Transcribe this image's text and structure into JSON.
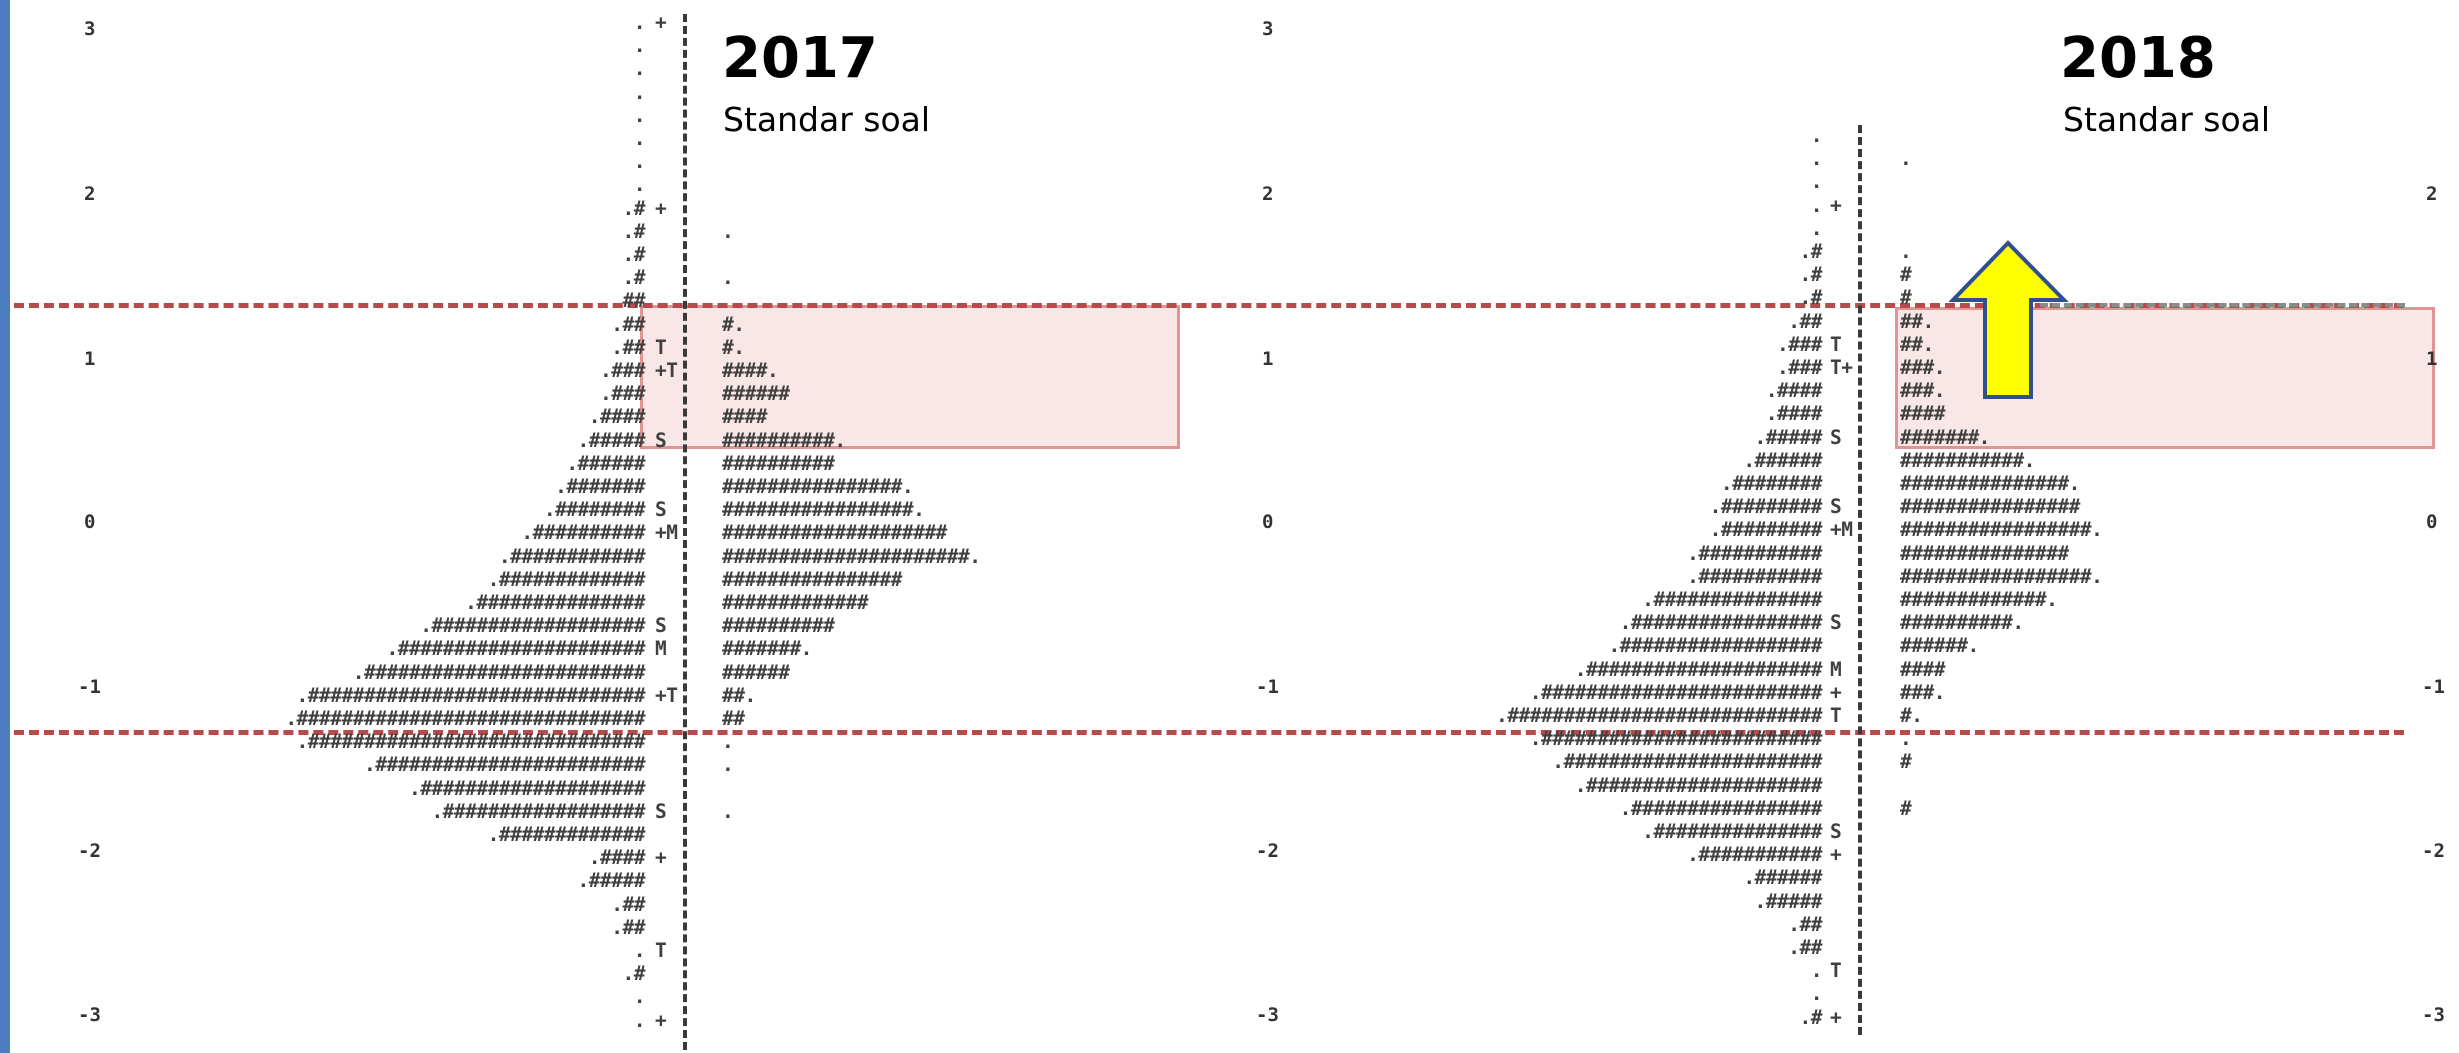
{
  "panels": [
    {
      "title": "2017",
      "subtitle": "Standar soal",
      "axis_ticks": [
        "3",
        "2",
        "1",
        "0",
        "-1",
        "-2",
        "-3"
      ],
      "rows": [
        {
          "left": ".",
          "marker": "+",
          "right": ""
        },
        {
          "left": ".",
          "marker": "",
          "right": ""
        },
        {
          "left": ".",
          "marker": "",
          "right": ""
        },
        {
          "left": ".",
          "marker": "",
          "right": ""
        },
        {
          "left": ".",
          "marker": "",
          "right": ""
        },
        {
          "left": ".",
          "marker": "",
          "right": ""
        },
        {
          "left": ".",
          "marker": "",
          "right": ""
        },
        {
          "left": ".",
          "marker": "",
          "right": ""
        },
        {
          "left": ".#",
          "marker": "+",
          "right": ""
        },
        {
          "left": ".#",
          "marker": "",
          "right": "."
        },
        {
          "left": ".#",
          "marker": "",
          "right": ""
        },
        {
          "left": ".#",
          "marker": "",
          "right": "."
        },
        {
          "left": "##",
          "marker": "",
          "right": ""
        },
        {
          "left": ".##",
          "marker": "",
          "right": "#."
        },
        {
          "left": ".##",
          "marker": "T",
          "right": "#."
        },
        {
          "left": ".###",
          "marker": "+T",
          "right": "####."
        },
        {
          "left": ".###",
          "marker": "",
          "right": "######"
        },
        {
          "left": ".####",
          "marker": "",
          "right": "####"
        },
        {
          "left": ".#####",
          "marker": "S",
          "right": "##########."
        },
        {
          "left": ".######",
          "marker": "",
          "right": "##########"
        },
        {
          "left": ".#######",
          "marker": "",
          "right": "################."
        },
        {
          "left": ".########",
          "marker": "S",
          "right": "#################."
        },
        {
          "left": ".##########",
          "marker": "+M",
          "right": "####################"
        },
        {
          "left": ".############",
          "marker": "",
          "right": "######################."
        },
        {
          "left": ".#############",
          "marker": "",
          "right": "################"
        },
        {
          "left": ".###############",
          "marker": "",
          "right": "#############"
        },
        {
          "left": ".###################",
          "marker": "S",
          "right": "##########"
        },
        {
          "left": ".######################",
          "marker": "M",
          "right": "#######."
        },
        {
          "left": ".#########################",
          "marker": "",
          "right": "######"
        },
        {
          "left": ".##############################",
          "marker": "+T",
          "right": "##."
        },
        {
          "left": ".###############################",
          "marker": "",
          "right": "##"
        },
        {
          "left": ".##############################",
          "marker": "",
          "right": "."
        },
        {
          "left": ".########################",
          "marker": "",
          "right": "."
        },
        {
          "left": ".####################",
          "marker": "",
          "right": ""
        },
        {
          "left": ".##################",
          "marker": "S",
          "right": "."
        },
        {
          "left": ".#############",
          "marker": "",
          "right": ""
        },
        {
          "left": ".####",
          "marker": "+",
          "right": ""
        },
        {
          "left": ".#####",
          "marker": "",
          "right": ""
        },
        {
          "left": ".##",
          "marker": "",
          "right": ""
        },
        {
          "left": ".##",
          "marker": "",
          "right": ""
        },
        {
          "left": ".",
          "marker": "T",
          "right": ""
        },
        {
          "left": ".#",
          "marker": "",
          "right": ""
        },
        {
          "left": ".",
          "marker": "",
          "right": ""
        },
        {
          "left": ".",
          "marker": "+",
          "right": ""
        }
      ]
    },
    {
      "title": "2018",
      "subtitle": "Standar soal",
      "axis_ticks": [
        "3",
        "2",
        "1",
        "0",
        "-1",
        "-2",
        "-3"
      ],
      "axis_ticks_right": [
        "2",
        "1",
        "0",
        "-1",
        "-2",
        "-3"
      ],
      "rows": [
        {
          "left": ".",
          "marker": "",
          "right": ""
        },
        {
          "left": ".",
          "marker": "",
          "right": "."
        },
        {
          "left": ".",
          "marker": "",
          "right": ""
        },
        {
          "left": ".",
          "marker": "+",
          "right": ""
        },
        {
          "left": ".",
          "marker": "",
          "right": ""
        },
        {
          "left": ".#",
          "marker": "",
          "right": "."
        },
        {
          "left": ".#",
          "marker": "",
          "right": "#"
        },
        {
          "left": ".#",
          "marker": "",
          "right": "#"
        },
        {
          "left": ".##",
          "marker": "",
          "right": "##."
        },
        {
          "left": ".###",
          "marker": "T",
          "right": "##."
        },
        {
          "left": ".###",
          "marker": "T+",
          "right": "###."
        },
        {
          "left": ".####",
          "marker": "",
          "right": "###."
        },
        {
          "left": ".####",
          "marker": "",
          "right": "####"
        },
        {
          "left": ".#####",
          "marker": "S",
          "right": "#######."
        },
        {
          "left": ".######",
          "marker": "",
          "right": "###########."
        },
        {
          "left": ".########",
          "marker": "",
          "right": "###############."
        },
        {
          "left": ".#########",
          "marker": "S",
          "right": "################"
        },
        {
          "left": ".#########",
          "marker": "+M",
          "right": "#################."
        },
        {
          "left": ".###########",
          "marker": "",
          "right": "###############"
        },
        {
          "left": ".###########",
          "marker": "",
          "right": "#################."
        },
        {
          "left": ".###############",
          "marker": "",
          "right": "#############."
        },
        {
          "left": ".#################",
          "marker": "S",
          "right": "##########."
        },
        {
          "left": ".##################",
          "marker": "",
          "right": "######."
        },
        {
          "left": ".#####################",
          "marker": "M",
          "right": "####"
        },
        {
          "left": ".#########################",
          "marker": "+",
          "right": "###."
        },
        {
          "left": ".############################",
          "marker": "T",
          "right": "#."
        },
        {
          "left": ".#########################",
          "marker": "",
          "right": "."
        },
        {
          "left": ".#######################",
          "marker": "",
          "right": "#"
        },
        {
          "left": ".#####################",
          "marker": "",
          "right": ""
        },
        {
          "left": ".#################",
          "marker": "",
          "right": "#"
        },
        {
          "left": ".###############",
          "marker": "S",
          "right": ""
        },
        {
          "left": ".###########",
          "marker": "+",
          "right": ""
        },
        {
          "left": ".######",
          "marker": "",
          "right": ""
        },
        {
          "left": ".#####",
          "marker": "",
          "right": ""
        },
        {
          "left": ".##",
          "marker": "",
          "right": ""
        },
        {
          "left": ".##",
          "marker": "",
          "right": ""
        },
        {
          "left": ".",
          "marker": "T",
          "right": ""
        },
        {
          "left": ".",
          "marker": "",
          "right": ""
        },
        {
          "left": ".#",
          "marker": "+",
          "right": ""
        }
      ]
    }
  ],
  "chart_data": {
    "type": "table",
    "title": "",
    "xlabel": "",
    "ylabel": "",
    "ylim": [
      -3,
      3
    ],
    "yticks": [
      3,
      2,
      1,
      0,
      -1,
      -2,
      -3
    ],
    "highlight_band": {
      "logit_from": 0.6,
      "logit_to": 1.4
    },
    "cut_lines_logit": [
      1.38,
      -1.25
    ],
    "colors": {
      "band_fill": "#f6dcdc",
      "band_border": "#e39a9a",
      "cut_line": "#b94a4a",
      "arrow_fill": "#ffff00",
      "arrow_stroke": "#2f4f8f"
    }
  }
}
